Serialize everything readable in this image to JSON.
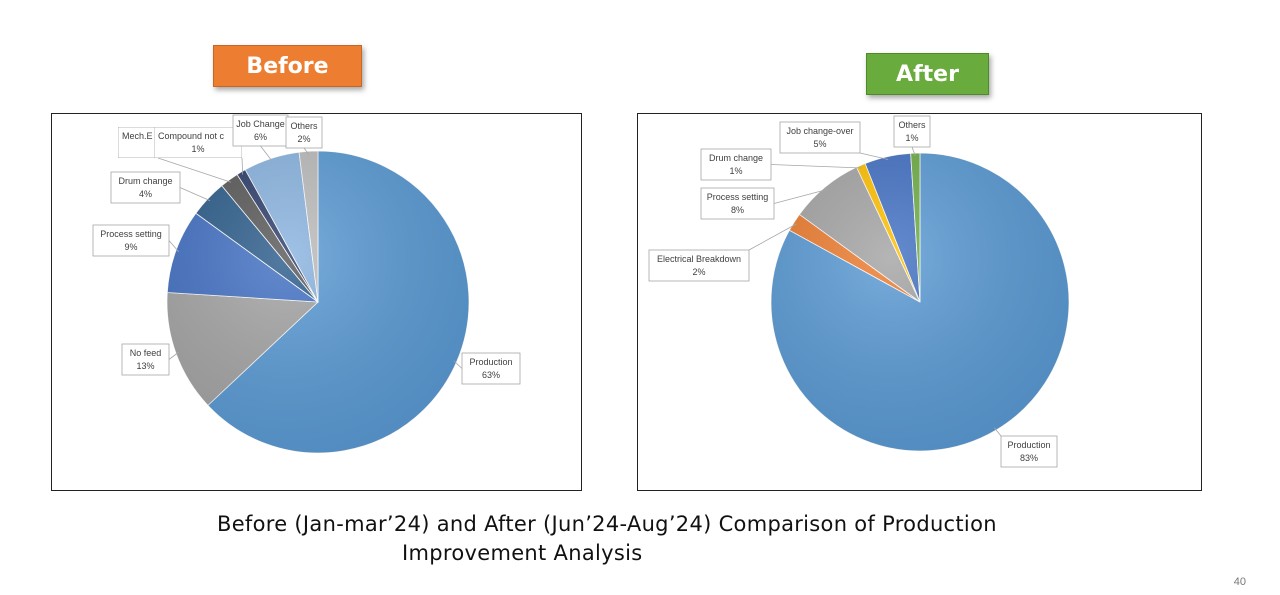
{
  "slide": {
    "badge_before": "Before",
    "badge_after": "After",
    "caption_line1": "Before (Jan-mar’24) and After (Jun’24-Aug’24) Comparison of Production",
    "caption_line2": "Improvement Analysis",
    "page_number": "40",
    "colors": {
      "before_badge": "#ed7d31",
      "after_badge": "#6aab3e"
    }
  },
  "chart_data": [
    {
      "type": "pie",
      "title": "",
      "slices": [
        {
          "label": "Production",
          "value": 63,
          "pct": "63%",
          "color": "#5b9bd5"
        },
        {
          "label": "No feed",
          "value": 13,
          "pct": "13%",
          "color": "#a5a5a5"
        },
        {
          "label": "Process setting",
          "value": 9,
          "pct": "9%",
          "color": "#4472c4"
        },
        {
          "label": "Drum change",
          "value": 4,
          "pct": "4%",
          "color": "#2e5e8c"
        },
        {
          "label": "Mech.E",
          "value": 2,
          "pct": "",
          "color": "#5a5a5a"
        },
        {
          "label": "Compound not c",
          "value": 1,
          "pct": "1%",
          "color": "#2f3f6b"
        },
        {
          "label": "Job Change",
          "value": 6,
          "pct": "6%",
          "color": "#8bb4e0"
        },
        {
          "label": "Others",
          "value": 2,
          "pct": "2%",
          "color": "#bcbcbc"
        }
      ]
    },
    {
      "type": "pie",
      "title": "",
      "slices": [
        {
          "label": "Production",
          "value": 83,
          "pct": "83%",
          "color": "#5b9bd5"
        },
        {
          "label": "Electrical Breakdown",
          "value": 2,
          "pct": "2%",
          "color": "#ed7d31"
        },
        {
          "label": "Process setting",
          "value": 8,
          "pct": "8%",
          "color": "#a5a5a5"
        },
        {
          "label": "Drum change",
          "value": 1,
          "pct": "1%",
          "color": "#ffc000"
        },
        {
          "label": "Job change-over",
          "value": 5,
          "pct": "5%",
          "color": "#4472c4"
        },
        {
          "label": "Others",
          "value": 1,
          "pct": "1%",
          "color": "#70ad47"
        }
      ]
    }
  ]
}
